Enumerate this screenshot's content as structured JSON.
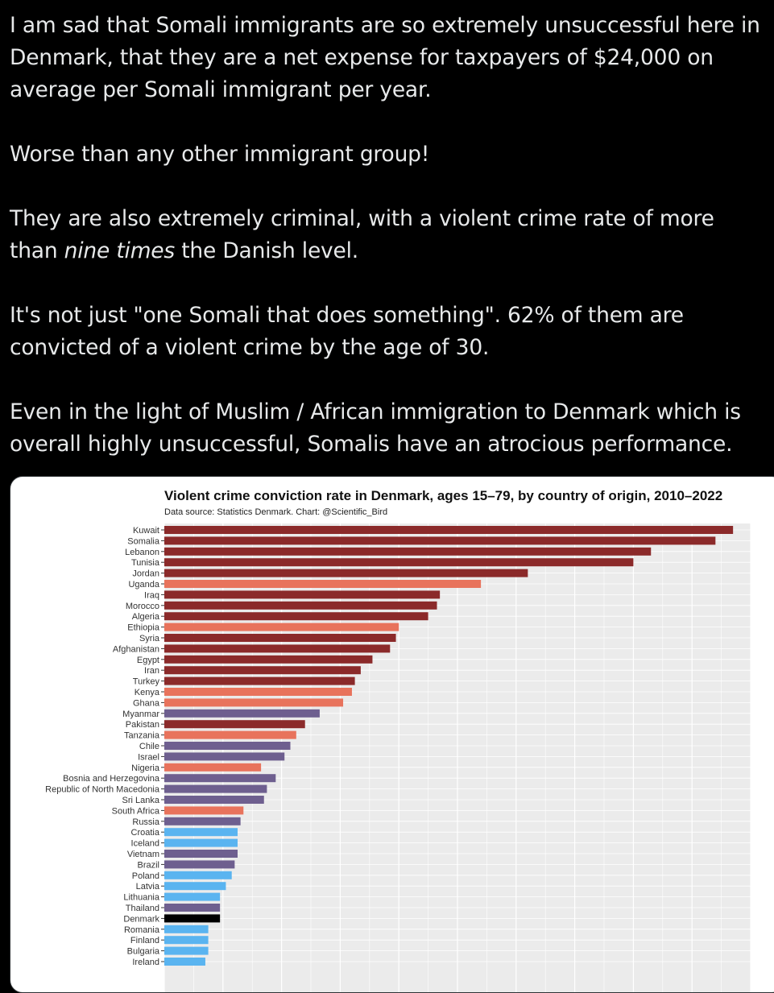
{
  "tweet": {
    "p1": "I am sad that Somali immigrants are so extremely unsuccessful here in Denmark, that they are a net expense for taxpayers of $24,000 on average per Somali immigrant per year.",
    "p2": "Worse than any other immigrant group!",
    "p3_before": "They are also extremely criminal, with a violent crime rate of more than ",
    "p3_em": "nine times",
    "p3_after": " the Danish level.",
    "p4": "It's not just \"one Somali that does something\". 62% of them are convicted of a violent crime by the age of 30.",
    "p5": "Even in the light of Muslim / African immigration to Denmark which is overall highly unsuccessful, Somalis have an atrocious performance."
  },
  "colors": {
    "mena": "#8b2a2a",
    "africa": "#e8735c",
    "asia_other": "#6e5f8f",
    "europe": "#5ab4f0",
    "denmark": "#000000",
    "panel_bg": "#ebebeb",
    "grid": "#ffffff"
  },
  "chart_data": {
    "type": "bar",
    "orientation": "horizontal",
    "title": "Violent crime conviction rate in Denmark, ages 15–79, by country of origin, 2010–2022",
    "subtitle": "Data source: Statistics Denmark. Chart: @Scientific_Bird",
    "xlabel": "",
    "ylabel": "",
    "xlim": [
      0,
      100
    ],
    "grid": true,
    "note": "x-axis tick labels are not visible in the screenshot; values are relative bar lengths on a 0–100 scale",
    "categories": [
      "Kuwait",
      "Somalia",
      "Lebanon",
      "Tunisia",
      "Jordan",
      "Uganda",
      "Iraq",
      "Morocco",
      "Algeria",
      "Ethiopia",
      "Syria",
      "Afghanistan",
      "Egypt",
      "Iran",
      "Turkey",
      "Kenya",
      "Ghana",
      "Myanmar",
      "Pakistan",
      "Tanzania",
      "Chile",
      "Israel",
      "Nigeria",
      "Bosnia and Herzegovina",
      "Republic of North Macedonia",
      "Sri Lanka",
      "South Africa",
      "Russia",
      "Croatia",
      "Iceland",
      "Vietnam",
      "Brazil",
      "Poland",
      "Latvia",
      "Lithuania",
      "Thailand",
      "Denmark",
      "Romania",
      "Finland",
      "Bulgaria",
      "Ireland"
    ],
    "values": [
      97,
      94,
      83,
      80,
      62,
      54,
      47,
      46.5,
      45,
      40,
      39.5,
      38.5,
      35.5,
      33.5,
      32.5,
      32,
      30.5,
      26.5,
      24,
      22.5,
      21.5,
      20.5,
      16.5,
      19,
      17.5,
      17,
      13.5,
      13,
      12.5,
      12.5,
      12.5,
      12,
      11.5,
      10.5,
      9.5,
      9.5,
      9.5,
      7.5,
      7.5,
      7.5,
      7
    ],
    "groups": [
      "mena",
      "mena",
      "mena",
      "mena",
      "mena",
      "africa",
      "mena",
      "mena",
      "mena",
      "africa",
      "mena",
      "mena",
      "mena",
      "mena",
      "mena",
      "africa",
      "africa",
      "asia_other",
      "mena",
      "africa",
      "asia_other",
      "asia_other",
      "africa",
      "asia_other",
      "asia_other",
      "asia_other",
      "africa",
      "asia_other",
      "europe",
      "europe",
      "asia_other",
      "asia_other",
      "europe",
      "europe",
      "europe",
      "asia_other",
      "denmark",
      "europe",
      "europe",
      "europe",
      "europe"
    ]
  }
}
